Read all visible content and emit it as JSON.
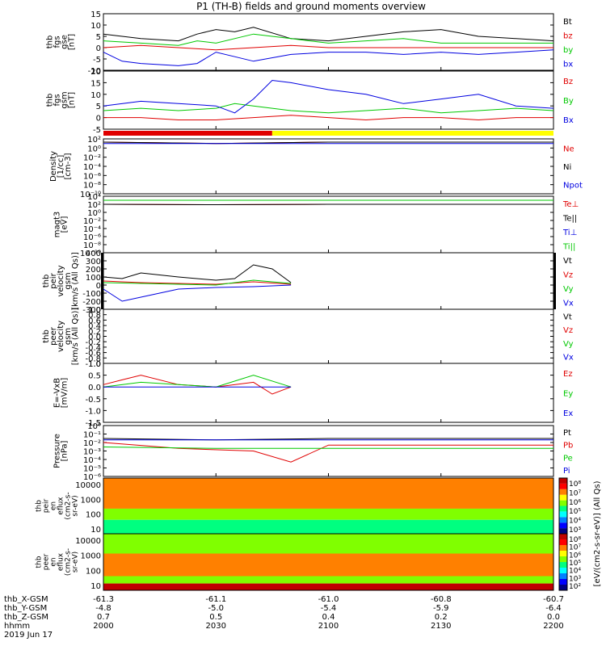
{
  "title": "P1 (TH-B) fields and ground moments overview",
  "chart_data": [
    {
      "type": "line",
      "panel": "fgs_gse",
      "ylabel": [
        "thb",
        "fgs",
        "gse",
        "[nT]"
      ],
      "ylim": [
        -10,
        15
      ],
      "yticks": [
        -10,
        -5,
        0,
        5,
        10,
        15
      ],
      "series": [
        {
          "name": "Bt",
          "color": "#000000",
          "x": [
            2000,
            2010,
            2020,
            2025,
            2030,
            2035,
            2040,
            2050,
            2100,
            2110,
            2120,
            2130,
            2140,
            2150,
            2200
          ],
          "values": [
            6,
            4,
            3,
            6,
            8,
            7,
            9,
            4,
            3,
            5,
            7,
            8,
            5,
            4,
            3
          ]
        },
        {
          "name": "bz",
          "color": "#e00000",
          "x": [
            2000,
            2010,
            2020,
            2030,
            2040,
            2050,
            2100,
            2110,
            2120,
            2130,
            2140,
            2150,
            2200
          ],
          "values": [
            0,
            1,
            0,
            -1,
            0,
            1,
            0,
            0,
            0,
            0,
            0,
            0,
            0
          ]
        },
        {
          "name": "by",
          "color": "#00c800",
          "x": [
            2000,
            2010,
            2020,
            2025,
            2030,
            2040,
            2050,
            2100,
            2110,
            2120,
            2130,
            2140,
            2150,
            2200
          ],
          "values": [
            3,
            2,
            1,
            3,
            2,
            6,
            4,
            2,
            3,
            4,
            2,
            2,
            2,
            2
          ]
        },
        {
          "name": "bx",
          "color": "#0000e0",
          "x": [
            2000,
            2005,
            2010,
            2020,
            2025,
            2030,
            2035,
            2040,
            2050,
            2100,
            2110,
            2120,
            2130,
            2140,
            2150,
            2200
          ],
          "values": [
            -2,
            -6,
            -7,
            -8,
            -7,
            -2,
            -4,
            -6,
            -3,
            -2,
            -2,
            -3,
            -2,
            -3,
            -2,
            -1
          ]
        }
      ]
    },
    {
      "type": "line",
      "panel": "fgs_gsm",
      "ylabel": [
        "thb",
        "fgs",
        "gsm",
        "[nT]"
      ],
      "ylim": [
        -5,
        20
      ],
      "yticks": [
        -5,
        0,
        5,
        10,
        15,
        20
      ],
      "series": [
        {
          "name": "Bz",
          "color": "#e00000",
          "x": [
            2000,
            2010,
            2020,
            2030,
            2040,
            2050,
            2100,
            2110,
            2120,
            2130,
            2140,
            2150,
            2200
          ],
          "values": [
            0,
            0,
            -1,
            -1,
            0,
            1,
            0,
            -1,
            0,
            0,
            -1,
            0,
            0
          ]
        },
        {
          "name": "By",
          "color": "#00c800",
          "x": [
            2000,
            2010,
            2020,
            2030,
            2035,
            2040,
            2050,
            2100,
            2110,
            2120,
            2130,
            2140,
            2150,
            2200
          ],
          "values": [
            3,
            4,
            3,
            4,
            6,
            5,
            3,
            2,
            3,
            4,
            2,
            3,
            4,
            3
          ]
        },
        {
          "name": "Bx",
          "color": "#0000e0",
          "x": [
            2000,
            2010,
            2020,
            2030,
            2035,
            2040,
            2045,
            2050,
            2100,
            2110,
            2120,
            2130,
            2140,
            2150,
            2200
          ],
          "values": [
            5,
            7,
            6,
            5,
            2,
            8,
            16,
            15,
            12,
            10,
            6,
            8,
            10,
            5,
            4
          ]
        }
      ]
    },
    {
      "type": "line",
      "panel": "density",
      "ylabel": [
        "Density",
        "[1/cc]",
        "[cm-3]"
      ],
      "ylim": [
        "1e-10",
        "1e2"
      ],
      "ytick_labels": [
        "10²",
        "10⁰",
        "10⁻²",
        "10⁻⁴",
        "10⁻⁶",
        "10⁻⁸",
        "10⁻¹⁰"
      ],
      "scale": "log",
      "series": [
        {
          "name": "Ne",
          "color": "#e00000",
          "x": [
            2000,
            2030,
            2100,
            2130,
            2200
          ],
          "values": [
            "2e1",
            "1e1",
            "2e1",
            "2e1",
            "2e1"
          ]
        },
        {
          "name": "Ni",
          "color": "#000000",
          "x": [
            2000,
            2030,
            2100,
            2130,
            2200
          ],
          "values": [
            "2e1",
            "1e1",
            "2e1",
            "2e1",
            "2e1"
          ]
        },
        {
          "name": "Npot",
          "color": "#0000e0",
          "x": [
            2000,
            2030,
            2100,
            2130,
            2200
          ],
          "values": [
            "1e1",
            "1e1",
            "1e1",
            "1e1",
            "1e1"
          ]
        }
      ]
    },
    {
      "type": "line",
      "panel": "temperature",
      "ylabel": [
        "magt3",
        "[eV]"
      ],
      "ylim": [
        "1e-10",
        "1e4"
      ],
      "ytick_labels": [
        "10⁴",
        "10²",
        "10⁰",
        "10⁻²",
        "10⁻⁴",
        "10⁻⁶",
        "10⁻⁸",
        "10⁻¹⁰"
      ],
      "scale": "log",
      "series": [
        {
          "name": "Te⊥",
          "color": "#e00000",
          "x": [
            2000,
            2030,
            2100,
            2130,
            2200
          ],
          "values": [
            "1e2",
            "8e1",
            "1e2",
            "1e2",
            "1e2"
          ]
        },
        {
          "name": "Te||",
          "color": "#000000",
          "x": [
            2000,
            2030,
            2100,
            2130,
            2200
          ],
          "values": [
            "1e2",
            "8e1",
            "1e2",
            "1e2",
            "1e2"
          ]
        },
        {
          "name": "Ti⊥",
          "color": "#0000e0",
          "x": [
            2000,
            2030,
            2100,
            2130,
            2200
          ],
          "values": [
            "1e3",
            "1e3",
            "1e3",
            "1e3",
            "1e3"
          ]
        },
        {
          "name": "Ti||",
          "color": "#00c800",
          "x": [
            2000,
            2030,
            2100,
            2130,
            2200
          ],
          "values": [
            "1e3",
            "1e3",
            "1e3",
            "1e3",
            "1e3"
          ]
        }
      ]
    },
    {
      "type": "line",
      "panel": "peir_velocity",
      "ylabel": [
        "thb",
        "peir",
        "velocity",
        "gsm",
        "[km/s (All Qs)]"
      ],
      "ylim": [
        -300,
        400
      ],
      "yticks": [
        -300,
        -200,
        -100,
        0,
        100,
        200,
        300,
        400
      ],
      "series": [
        {
          "name": "Vt",
          "color": "#000000",
          "x": [
            2000,
            2005,
            2010,
            2020,
            2030,
            2035,
            2040,
            2045,
            2050
          ],
          "values": [
            100,
            80,
            150,
            100,
            60,
            80,
            250,
            200,
            30
          ]
        },
        {
          "name": "Vz",
          "color": "#e00000",
          "x": [
            2000,
            2010,
            2020,
            2030,
            2040,
            2050
          ],
          "values": [
            50,
            30,
            20,
            10,
            40,
            10
          ]
        },
        {
          "name": "Vy",
          "color": "#00c800",
          "x": [
            2000,
            2010,
            2020,
            2030,
            2040,
            2050
          ],
          "values": [
            30,
            20,
            10,
            0,
            60,
            20
          ]
        },
        {
          "name": "Vx",
          "color": "#0000e0",
          "x": [
            2000,
            2005,
            2010,
            2020,
            2030,
            2040,
            2050
          ],
          "values": [
            -50,
            -200,
            -150,
            -50,
            -30,
            -20,
            0
          ]
        }
      ]
    },
    {
      "type": "line",
      "panel": "peer_velocity",
      "ylabel": [
        "thb",
        "peer",
        "velocity",
        "gsm",
        "[km/s (All Qs)]"
      ],
      "ylim": [
        -1.0,
        1.0
      ],
      "yticks": [
        -1.0,
        -0.8,
        -0.6,
        -0.4,
        -0.2,
        0.0,
        0.2,
        0.4,
        0.6,
        0.8,
        1.0
      ],
      "series": [
        {
          "name": "Vt",
          "color": "#000000",
          "x": [],
          "values": []
        },
        {
          "name": "Vz",
          "color": "#e00000",
          "x": [],
          "values": []
        },
        {
          "name": "Vy",
          "color": "#00c800",
          "x": [],
          "values": []
        },
        {
          "name": "Vx",
          "color": "#0000e0",
          "x": [],
          "values": []
        }
      ]
    },
    {
      "type": "line",
      "panel": "efield",
      "ylabel": [
        "E=-VxB",
        "[mV/m]"
      ],
      "ylim": [
        -1.5,
        1.0
      ],
      "yticks": [
        -1.5,
        -1.0,
        -0.5,
        0.0,
        0.5,
        1.0
      ],
      "series": [
        {
          "name": "Ez",
          "color": "#e00000",
          "x": [
            2000,
            2005,
            2010,
            2020,
            2030,
            2040,
            2045,
            2050
          ],
          "values": [
            0.1,
            0.3,
            0.5,
            0.1,
            0.0,
            0.2,
            -0.3,
            0.0
          ]
        },
        {
          "name": "Ey",
          "color": "#00c800",
          "x": [
            2000,
            2010,
            2020,
            2030,
            2040,
            2050
          ],
          "values": [
            0.0,
            0.2,
            0.1,
            0.0,
            0.5,
            0.0
          ]
        },
        {
          "name": "Ex",
          "color": "#0000e0",
          "x": [
            2000,
            2010,
            2020,
            2030,
            2040,
            2050
          ],
          "values": [
            0.0,
            0.0,
            0.0,
            0.0,
            0.0,
            0.0
          ]
        }
      ]
    },
    {
      "type": "line",
      "panel": "pressure",
      "ylabel": [
        "Pressure",
        "[nPa]"
      ],
      "ylim": [
        "1e-6",
        "1e0"
      ],
      "ytick_labels": [
        "10⁰",
        "10⁻¹",
        "10⁻²",
        "10⁻³",
        "10⁻⁴",
        "10⁻⁵",
        "10⁻⁶"
      ],
      "scale": "log",
      "series": [
        {
          "name": "Pt",
          "color": "#000000",
          "x": [
            2000,
            2030,
            2100,
            2130,
            2200
          ],
          "values": [
            "3e-2",
            "2e-2",
            "3e-2",
            "3e-2",
            "3e-2"
          ]
        },
        {
          "name": "Pb",
          "color": "#e00000",
          "x": [
            2000,
            2020,
            2040,
            2050,
            2100,
            2130,
            2200
          ],
          "values": [
            "1e-2",
            "2e-3",
            "1e-3",
            "5e-5",
            "5e-3",
            "5e-3",
            "5e-3"
          ]
        },
        {
          "name": "Pe",
          "color": "#00c800",
          "x": [
            2000,
            2030,
            2100,
            2130,
            2200
          ],
          "values": [
            "3e-3",
            "2e-3",
            "2e-3",
            "2e-3",
            "2e-3"
          ]
        },
        {
          "name": "Pi",
          "color": "#0000e0",
          "x": [
            2000,
            2030,
            2100,
            2130,
            2200
          ],
          "values": [
            "2e-2",
            "2e-2",
            "2e-2",
            "2e-2",
            "2e-2"
          ]
        }
      ]
    },
    {
      "type": "heatmap",
      "panel": "peir_eflux",
      "ylabel": [
        "thb",
        "peir",
        "en",
        "eflux",
        "(cm2-s-",
        "sr-eV)"
      ],
      "ytick_labels": [
        "10000",
        "1000",
        "100",
        "10"
      ],
      "colorbar_ticks": [
        "10⁸",
        "10⁷",
        "10⁶",
        "10⁵",
        "10⁴",
        "10³"
      ],
      "colorbar_label": "[eV/(cm2-s-sr-eV)] (All Qs)"
    },
    {
      "type": "heatmap",
      "panel": "peer_eflux",
      "ylabel": [
        "thb",
        "peer",
        "en",
        "eflux",
        "(cm2-s-",
        "sr-eV)"
      ],
      "ytick_labels": [
        "10000",
        "1000",
        "100",
        "10"
      ],
      "colorbar_ticks": [
        "10⁸",
        "10⁷",
        "10⁶",
        "10⁵",
        "10⁴",
        "10³",
        "10²"
      ],
      "colorbar_label": "[eV/(cm2-s-sr-eV)] (All Qs)"
    }
  ],
  "colorbar_label": "[eV/(cm2-s-sr-eV)] (All Qs)",
  "ephemeris": {
    "labels": [
      "thb_X-GSM",
      "thb_Y-GSM",
      "thb_Z-GSM",
      "hhmm",
      "2019 Jun 17"
    ],
    "columns": [
      {
        "x": 2000,
        "vals": [
          "-61.3",
          "-4.8",
          "0.7",
          "2000"
        ]
      },
      {
        "x": 2030,
        "vals": [
          "-61.1",
          "-5.0",
          "0.5",
          "2030"
        ]
      },
      {
        "x": 2100,
        "vals": [
          "-61.0",
          "-5.4",
          "0.4",
          "2100"
        ]
      },
      {
        "x": 2130,
        "vals": [
          "-60.8",
          "-5.9",
          "0.2",
          "2130"
        ]
      },
      {
        "x": 2200,
        "vals": [
          "-60.7",
          "-6.4",
          "0.0",
          "2200"
        ]
      }
    ]
  },
  "mode_bar": {
    "segments": [
      {
        "color": "#e00000",
        "from": 2000,
        "to": 2045
      },
      {
        "color": "#ffff00",
        "from": 2045,
        "to": 2200
      }
    ]
  }
}
